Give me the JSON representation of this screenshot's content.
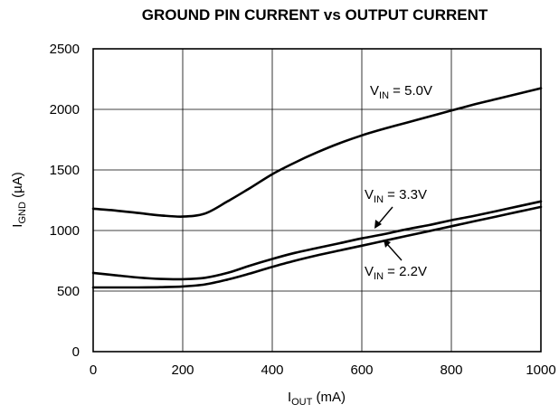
{
  "chart_data": {
    "type": "line",
    "title": "GROUND PIN CURRENT vs OUTPUT CURRENT",
    "xlabel": {
      "main": "I",
      "sub": "OUT",
      "rest": " (mA)"
    },
    "ylabel": {
      "main": "I",
      "sub": "GND",
      "rest": " (µA)"
    },
    "xlim": [
      0,
      1000
    ],
    "ylim": [
      0,
      2500
    ],
    "xticks": [
      0,
      200,
      400,
      600,
      800,
      1000
    ],
    "xtick_labels": [
      "0",
      "200",
      "400",
      "600",
      "800",
      "1000"
    ],
    "yticks": [
      0,
      500,
      1000,
      1500,
      2000,
      2500
    ],
    "ytick_labels": [
      "0",
      "500",
      "1000",
      "1500",
      "2000",
      "2500"
    ],
    "grid": true,
    "series": [
      {
        "label": {
          "main": "V",
          "sub": "IN",
          "rest": " = 5.0V"
        },
        "x": [
          0,
          50,
          100,
          150,
          200,
          250,
          300,
          350,
          400,
          450,
          500,
          550,
          600,
          650,
          700,
          750,
          800,
          850,
          900,
          950,
          1000
        ],
        "y": [
          1180,
          1165,
          1145,
          1125,
          1115,
          1140,
          1240,
          1350,
          1465,
          1560,
          1645,
          1720,
          1785,
          1840,
          1890,
          1940,
          1990,
          2040,
          2085,
          2130,
          2175
        ]
      },
      {
        "label": {
          "main": "V",
          "sub": "IN",
          "rest": " = 3.3V"
        },
        "x": [
          0,
          50,
          100,
          150,
          200,
          250,
          300,
          350,
          400,
          450,
          500,
          550,
          600,
          650,
          700,
          750,
          800,
          850,
          900,
          950,
          1000
        ],
        "y": [
          650,
          630,
          612,
          600,
          598,
          610,
          650,
          710,
          765,
          815,
          855,
          895,
          935,
          970,
          1010,
          1045,
          1085,
          1120,
          1160,
          1200,
          1240
        ]
      },
      {
        "label": {
          "main": "V",
          "sub": "IN",
          "rest": " = 2.2V"
        },
        "x": [
          0,
          50,
          100,
          150,
          200,
          250,
          300,
          350,
          400,
          450,
          500,
          550,
          600,
          650,
          700,
          750,
          800,
          850,
          900,
          950,
          1000
        ],
        "y": [
          530,
          530,
          530,
          532,
          538,
          555,
          595,
          645,
          700,
          750,
          795,
          835,
          875,
          915,
          955,
          995,
          1035,
          1075,
          1115,
          1155,
          1195
        ]
      }
    ]
  }
}
